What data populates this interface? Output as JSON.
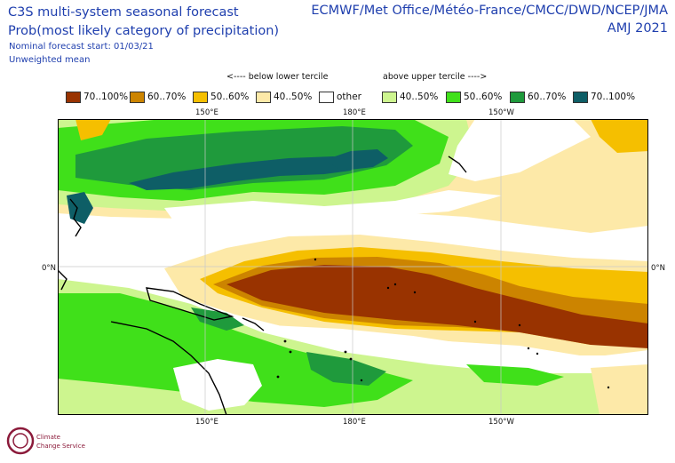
{
  "header": {
    "title_line1": "C3S multi-system seasonal forecast",
    "title_line2": "Prob(most likely category of precipitation)",
    "start": "Nominal forecast start: 01/03/21",
    "mean": "Unweighted mean",
    "systems": "ECMWF/Met Office/Météo-France/CMCC/DWD/NCEP/JMA",
    "season": "AMJ 2021"
  },
  "legend": {
    "below_caption": "<---- below lower tercile",
    "above_caption": "above upper tercile ---->",
    "items": [
      {
        "label": "70..100%",
        "color": "#993300"
      },
      {
        "label": "60..70%",
        "color": "#cc8400"
      },
      {
        "label": "50..60%",
        "color": "#f5bf00"
      },
      {
        "label": "40..50%",
        "color": "#fde9a8"
      },
      {
        "label": "other",
        "color": "#ffffff"
      },
      {
        "label": "40..50%",
        "color": "#cdf58f"
      },
      {
        "label": "50..60%",
        "color": "#40e01a"
      },
      {
        "label": "60..70%",
        "color": "#1f9a3c"
      },
      {
        "label": "70..100%",
        "color": "#0e5e66"
      }
    ]
  },
  "axes": {
    "lon_top": [
      "150°E",
      "180°E",
      "150°W"
    ],
    "lon_bottom": [
      "150°E",
      "180°E",
      "150°W"
    ],
    "lat_left": "0°N",
    "lat_right": "0°N"
  },
  "logo": {
    "text_line1": "Climate",
    "text_line2": "Change Service"
  }
}
